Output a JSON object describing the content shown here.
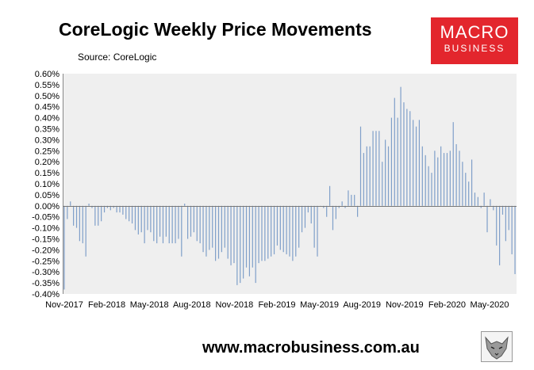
{
  "header": {
    "title": "CoreLogic Weekly Price Movements",
    "source": "Source: CoreLogic"
  },
  "logo": {
    "line1": "MACRO",
    "line2": "BUSINESS",
    "color": "#e3262d",
    "icon": "wolf-icon"
  },
  "footer": {
    "url": "www.macrobusiness.com.au"
  },
  "colors": {
    "bar": "#7f9fc9",
    "plot_bg": "#efefef",
    "page_bg": "#ffffff"
  },
  "chart_data": {
    "type": "bar",
    "title": "CoreLogic Weekly Price Movements",
    "xlabel": "",
    "ylabel": "",
    "ylim": [
      -0.4,
      0.6
    ],
    "y_ticks": [
      "0.60%",
      "0.55%",
      "0.50%",
      "0.45%",
      "0.40%",
      "0.35%",
      "0.30%",
      "0.25%",
      "0.20%",
      "0.15%",
      "0.10%",
      "0.05%",
      "0.00%",
      "-0.05%",
      "-0.10%",
      "-0.15%",
      "-0.20%",
      "-0.25%",
      "-0.30%",
      "-0.35%",
      "-0.40%"
    ],
    "x_tick_labels": [
      "Nov-2017",
      "Feb-2018",
      "May-2018",
      "Aug-2018",
      "Nov-2018",
      "Feb-2019",
      "May-2019",
      "Aug-2019",
      "Nov-2019",
      "Feb-2020",
      "May-2020"
    ],
    "grid": false,
    "legend": "none",
    "x_start": "Nov-2017",
    "x_end": "Jul-2020",
    "frequency": "weekly",
    "values": [
      -0.38,
      -0.06,
      0.02,
      -0.09,
      -0.1,
      -0.16,
      -0.17,
      -0.23,
      0.01,
      -0.01,
      -0.09,
      -0.09,
      -0.07,
      -0.03,
      -0.01,
      -0.02,
      -0.01,
      -0.03,
      -0.03,
      -0.04,
      -0.06,
      -0.07,
      -0.08,
      -0.11,
      -0.13,
      -0.12,
      -0.17,
      -0.11,
      -0.12,
      -0.16,
      -0.17,
      -0.14,
      -0.17,
      -0.14,
      -0.17,
      -0.17,
      -0.17,
      -0.15,
      -0.23,
      0.01,
      -0.15,
      -0.14,
      -0.12,
      -0.16,
      -0.17,
      -0.21,
      -0.23,
      -0.2,
      -0.19,
      -0.25,
      -0.24,
      -0.21,
      -0.19,
      -0.24,
      -0.27,
      -0.26,
      -0.36,
      -0.35,
      -0.33,
      -0.28,
      -0.32,
      -0.28,
      -0.35,
      -0.26,
      -0.25,
      -0.25,
      -0.24,
      -0.23,
      -0.22,
      -0.18,
      -0.2,
      -0.21,
      -0.22,
      -0.23,
      -0.25,
      -0.23,
      -0.19,
      -0.12,
      -0.1,
      -0.03,
      -0.08,
      -0.19,
      -0.23,
      0.0,
      -0.01,
      -0.05,
      0.09,
      -0.11,
      -0.06,
      -0.01,
      0.02,
      -0.01,
      0.07,
      0.05,
      0.05,
      -0.05,
      0.36,
      0.24,
      0.27,
      0.27,
      0.34,
      0.34,
      0.34,
      0.2,
      0.3,
      0.27,
      0.4,
      0.49,
      0.4,
      0.54,
      0.47,
      0.44,
      0.43,
      0.39,
      0.36,
      0.39,
      0.27,
      0.23,
      0.18,
      0.15,
      0.25,
      0.22,
      0.27,
      0.24,
      0.24,
      0.25,
      0.38,
      0.28,
      0.25,
      0.2,
      0.15,
      0.11,
      0.21,
      0.06,
      0.04,
      -0.01,
      0.06,
      -0.12,
      0.03,
      -0.02,
      -0.18,
      -0.27,
      -0.04,
      -0.16,
      -0.11,
      -0.22,
      -0.31
    ]
  }
}
